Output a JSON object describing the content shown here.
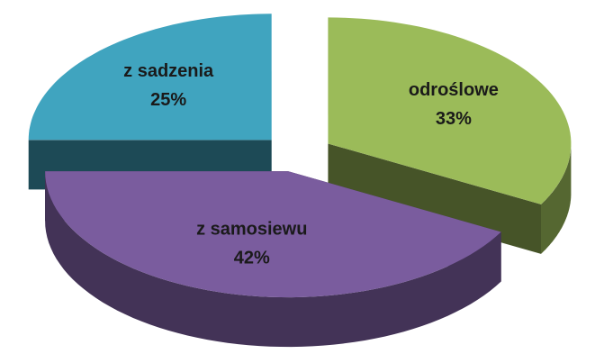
{
  "chart_data": {
    "type": "pie3d",
    "categories": [
      "odroślowe",
      "z samosiewu",
      "z sadzenia"
    ],
    "values": [
      33,
      42,
      25
    ],
    "value_labels": [
      "33%",
      "42%",
      "25%"
    ],
    "colors": [
      "#9bbb59",
      "#7a5c9e",
      "#40a4bf"
    ]
  }
}
